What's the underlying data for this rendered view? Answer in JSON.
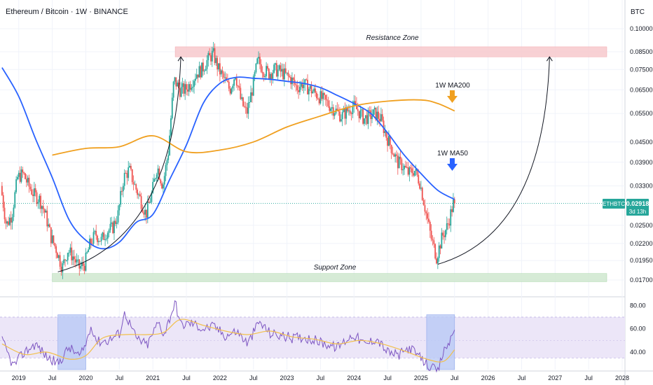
{
  "header": {
    "title": "Ethereum / Bitcoin · 1W · BINANCE",
    "currency": "BTC"
  },
  "price_axis": {
    "ticks": [
      "0.10000",
      "0.08500",
      "0.07500",
      "0.06500",
      "0.05500",
      "0.04500",
      "0.03900",
      "0.03300",
      "0.02500",
      "0.02200",
      "0.01950",
      "0.01700"
    ]
  },
  "rsi_axis": {
    "ticks": [
      "80.00",
      "60.00",
      "40.00"
    ]
  },
  "time_axis": {
    "labels": [
      "2019",
      "Jul",
      "2020",
      "Jul",
      "2021",
      "Jul",
      "2022",
      "Jul",
      "2023",
      "Jul",
      "2024",
      "Jul",
      "2025",
      "Jul",
      "2026",
      "Jul",
      "2027",
      "Jul",
      "2028"
    ]
  },
  "price_label": {
    "symbol": "ETHBTC",
    "value": "0.02918",
    "countdown": "3d 13h"
  },
  "annotations": {
    "resistance": "Resistance Zone",
    "support": "Support Zone",
    "ma200": "1W MA200",
    "ma50": "1W MA50"
  },
  "colors": {
    "background": "#ffffff",
    "grid": "#f0f3fa",
    "resistance_fill": "#f7c9cc",
    "support_fill": "#cfe8cf",
    "ma50": "#2962ff",
    "ma200": "#f0a020",
    "candle_up": "#26a69a",
    "candle_down": "#ef5350",
    "rsi_line": "#7e57c2",
    "rsi_ma": "#f2c04b",
    "rsi_band": "#ece6f8",
    "rsi_highlight": "#b9c9f5",
    "price_label": "#26a69a"
  },
  "chart_data": [
    {
      "type": "candlestick",
      "title": "Ethereum / Bitcoin · 1W · BINANCE",
      "scale": "log",
      "ylim": [
        0.0165,
        0.105
      ],
      "x_range": [
        "2018-10",
        "2028-01"
      ],
      "last_close": 0.02918,
      "ohlc_path": [
        [
          "2018-10",
          0.033
        ],
        [
          "2018-11",
          0.025
        ],
        [
          "2018-12",
          0.027
        ],
        [
          "2019-01",
          0.035
        ],
        [
          "2019-02",
          0.036
        ],
        [
          "2019-03",
          0.033
        ],
        [
          "2019-04",
          0.031
        ],
        [
          "2019-05",
          0.03
        ],
        [
          "2019-06",
          0.027
        ],
        [
          "2019-07",
          0.023
        ],
        [
          "2019-08",
          0.021
        ],
        [
          "2019-09",
          0.0185
        ],
        [
          "2019-10",
          0.021
        ],
        [
          "2019-11",
          0.02
        ],
        [
          "2019-12",
          0.0185
        ],
        [
          "2020-01",
          0.019
        ],
        [
          "2020-02",
          0.022
        ],
        [
          "2020-03",
          0.0235
        ],
        [
          "2020-04",
          0.0225
        ],
        [
          "2020-05",
          0.024
        ],
        [
          "2020-06",
          0.0245
        ],
        [
          "2020-07",
          0.027
        ],
        [
          "2020-08",
          0.035
        ],
        [
          "2020-09",
          0.037
        ],
        [
          "2020-10",
          0.033
        ],
        [
          "2020-11",
          0.03
        ],
        [
          "2020-12",
          0.027
        ],
        [
          "2021-01",
          0.031
        ],
        [
          "2021-02",
          0.038
        ],
        [
          "2021-03",
          0.033
        ],
        [
          "2021-04",
          0.042
        ],
        [
          "2021-05",
          0.07
        ],
        [
          "2021-06",
          0.065
        ],
        [
          "2021-07",
          0.065
        ],
        [
          "2021-08",
          0.068
        ],
        [
          "2021-09",
          0.073
        ],
        [
          "2021-10",
          0.075
        ],
        [
          "2021-11",
          0.08
        ],
        [
          "2021-12",
          0.084
        ],
        [
          "2022-01",
          0.075
        ],
        [
          "2022-02",
          0.07
        ],
        [
          "2022-03",
          0.065
        ],
        [
          "2022-04",
          0.073
        ],
        [
          "2022-05",
          0.06
        ],
        [
          "2022-06",
          0.055
        ],
        [
          "2022-07",
          0.065
        ],
        [
          "2022-08",
          0.08
        ],
        [
          "2022-09",
          0.075
        ],
        [
          "2022-10",
          0.073
        ],
        [
          "2022-11",
          0.075
        ],
        [
          "2022-12",
          0.074
        ],
        [
          "2023-01",
          0.072
        ],
        [
          "2023-02",
          0.07
        ],
        [
          "2023-03",
          0.066
        ],
        [
          "2023-04",
          0.068
        ],
        [
          "2023-05",
          0.066
        ],
        [
          "2023-06",
          0.064
        ],
        [
          "2023-07",
          0.062
        ],
        [
          "2023-08",
          0.06
        ],
        [
          "2023-09",
          0.058
        ],
        [
          "2023-10",
          0.056
        ],
        [
          "2023-11",
          0.054
        ],
        [
          "2023-12",
          0.056
        ],
        [
          "2024-01",
          0.058
        ],
        [
          "2024-02",
          0.056
        ],
        [
          "2024-03",
          0.053
        ],
        [
          "2024-04",
          0.054
        ],
        [
          "2024-05",
          0.055
        ],
        [
          "2024-06",
          0.053
        ],
        [
          "2024-07",
          0.047
        ],
        [
          "2024-08",
          0.043
        ],
        [
          "2024-09",
          0.039
        ],
        [
          "2024-10",
          0.038
        ],
        [
          "2024-11",
          0.036
        ],
        [
          "2024-12",
          0.037
        ],
        [
          "2025-01",
          0.034
        ],
        [
          "2025-02",
          0.028
        ],
        [
          "2025-03",
          0.023
        ],
        [
          "2025-04",
          0.02
        ],
        [
          "2025-05",
          0.023
        ],
        [
          "2025-06",
          0.025
        ],
        [
          "2025-07",
          0.0292
        ]
      ],
      "series": [
        {
          "name": "1W MA50",
          "points": [
            [
              "2018-10",
              0.076
            ],
            [
              "2019-01",
              0.062
            ],
            [
              "2019-04",
              0.046
            ],
            [
              "2019-07",
              0.035
            ],
            [
              "2019-10",
              0.026
            ],
            [
              "2020-01",
              0.0225
            ],
            [
              "2020-04",
              0.0212
            ],
            [
              "2020-07",
              0.0222
            ],
            [
              "2020-10",
              0.0255
            ],
            [
              "2021-01",
              0.027
            ],
            [
              "2021-04",
              0.0345
            ],
            [
              "2021-07",
              0.044
            ],
            [
              "2021-10",
              0.059
            ],
            [
              "2022-01",
              0.068
            ],
            [
              "2022-04",
              0.071
            ],
            [
              "2022-07",
              0.0705
            ],
            [
              "2022-10",
              0.07
            ],
            [
              "2023-01",
              0.069
            ],
            [
              "2023-04",
              0.068
            ],
            [
              "2023-07",
              0.066
            ],
            [
              "2023-10",
              0.0625
            ],
            [
              "2024-01",
              0.059
            ],
            [
              "2024-04",
              0.055
            ],
            [
              "2024-07",
              0.048
            ],
            [
              "2024-10",
              0.041
            ],
            [
              "2025-01",
              0.036
            ],
            [
              "2025-04",
              0.032
            ],
            [
              "2025-07",
              0.03
            ]
          ]
        },
        {
          "name": "1W MA200",
          "points": [
            [
              "2019-07",
              0.041
            ],
            [
              "2020-01",
              0.043
            ],
            [
              "2020-07",
              0.0435
            ],
            [
              "2021-01",
              0.047
            ],
            [
              "2021-07",
              0.042
            ],
            [
              "2022-01",
              0.0425
            ],
            [
              "2022-07",
              0.045
            ],
            [
              "2023-01",
              0.05
            ],
            [
              "2023-07",
              0.054
            ],
            [
              "2024-01",
              0.058
            ],
            [
              "2024-07",
              0.06
            ],
            [
              "2025-01",
              0.0605
            ],
            [
              "2025-04",
              0.059
            ],
            [
              "2025-07",
              0.056
            ]
          ]
        }
      ],
      "zones": [
        {
          "label": "Resistance Zone",
          "from": 0.082,
          "to": 0.088,
          "x": [
            "2021-05",
            "2028-01"
          ]
        },
        {
          "label": "Support Zone",
          "from": 0.0168,
          "to": 0.0178,
          "x": [
            "2019-07",
            "2028-01"
          ]
        }
      ],
      "projection_arcs": [
        {
          "from": [
            "2019-08",
            0.018
          ],
          "to": [
            "2021-06",
            0.082
          ]
        },
        {
          "from": [
            "2025-04",
            0.019
          ],
          "to": [
            "2026-12",
            0.082
          ]
        }
      ]
    },
    {
      "type": "line",
      "title": "RSI",
      "ylim": [
        25,
        85
      ],
      "yticks": [
        40,
        60,
        80
      ],
      "band": [
        35,
        70
      ],
      "series": [
        {
          "name": "RSI",
          "points": [
            [
              "2018-10",
              50
            ],
            [
              "2018-12",
              28
            ],
            [
              "2019-02",
              40
            ],
            [
              "2019-04",
              47
            ],
            [
              "2019-06",
              36
            ],
            [
              "2019-08",
              30
            ],
            [
              "2019-10",
              44
            ],
            [
              "2019-12",
              36
            ],
            [
              "2020-01",
              47
            ],
            [
              "2020-02",
              63
            ],
            [
              "2020-03",
              49
            ],
            [
              "2020-05",
              50
            ],
            [
              "2020-07",
              56
            ],
            [
              "2020-08",
              74
            ],
            [
              "2020-10",
              52
            ],
            [
              "2020-12",
              46
            ],
            [
              "2021-02",
              66
            ],
            [
              "2021-03",
              55
            ],
            [
              "2021-05",
              83
            ],
            [
              "2021-06",
              63
            ],
            [
              "2021-08",
              65
            ],
            [
              "2021-10",
              60
            ],
            [
              "2021-12",
              62
            ],
            [
              "2022-02",
              54
            ],
            [
              "2022-04",
              58
            ],
            [
              "2022-06",
              47
            ],
            [
              "2022-08",
              66
            ],
            [
              "2022-10",
              56
            ],
            [
              "2022-12",
              54
            ],
            [
              "2023-02",
              52
            ],
            [
              "2023-04",
              53
            ],
            [
              "2023-06",
              50
            ],
            [
              "2023-08",
              47
            ],
            [
              "2023-10",
              44
            ],
            [
              "2023-12",
              52
            ],
            [
              "2024-01",
              55
            ],
            [
              "2024-03",
              46
            ],
            [
              "2024-05",
              52
            ],
            [
              "2024-07",
              40
            ],
            [
              "2024-09",
              37
            ],
            [
              "2024-11",
              44
            ],
            [
              "2025-01",
              34
            ],
            [
              "2025-03",
              26
            ],
            [
              "2025-04",
              23
            ],
            [
              "2025-05",
              40
            ],
            [
              "2025-06",
              48
            ],
            [
              "2025-07",
              59
            ]
          ]
        },
        {
          "name": "RSI MA",
          "points": [
            [
              "2018-10",
              47
            ],
            [
              "2019-02",
              38
            ],
            [
              "2019-06",
              40
            ],
            [
              "2019-10",
              34
            ],
            [
              "2020-01",
              37
            ],
            [
              "2020-04",
              52
            ],
            [
              "2020-08",
              55
            ],
            [
              "2020-12",
              55
            ],
            [
              "2021-03",
              57
            ],
            [
              "2021-06",
              68
            ],
            [
              "2021-10",
              63
            ],
            [
              "2022-02",
              58
            ],
            [
              "2022-06",
              55
            ],
            [
              "2022-10",
              58
            ],
            [
              "2023-02",
              53
            ],
            [
              "2023-06",
              51
            ],
            [
              "2023-10",
              47
            ],
            [
              "2024-02",
              50
            ],
            [
              "2024-06",
              47
            ],
            [
              "2024-10",
              41
            ],
            [
              "2025-02",
              34
            ],
            [
              "2025-05",
              32
            ],
            [
              "2025-07",
              42
            ]
          ]
        }
      ],
      "highlights": [
        [
          "2019-08",
          "2020-01"
        ],
        [
          "2025-02",
          "2025-07"
        ]
      ]
    }
  ]
}
